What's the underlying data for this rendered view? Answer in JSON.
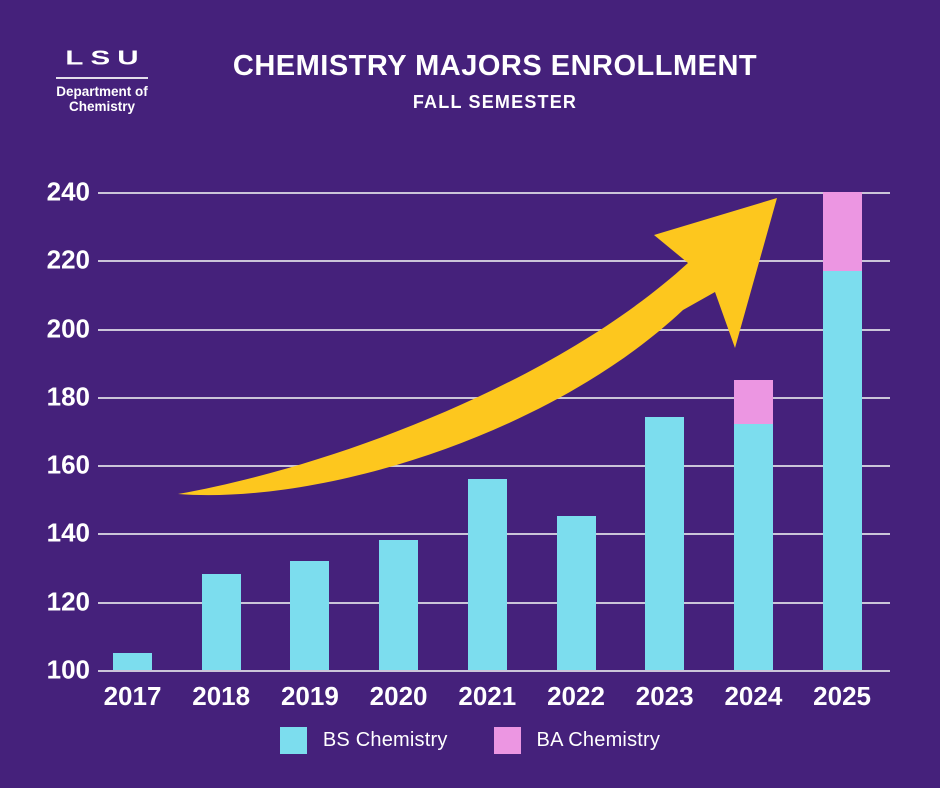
{
  "brand": {
    "logo_text": "LSU",
    "dept_line1": "Department of",
    "dept_line2": "Chemistry"
  },
  "header": {
    "title": "CHEMISTRY MAJORS ENROLLMENT",
    "subtitle": "FALL SEMESTER"
  },
  "chart_data": {
    "type": "bar",
    "stacked": true,
    "title": "CHEMISTRY MAJORS ENROLLMENT",
    "subtitle": "FALL SEMESTER",
    "xlabel": "",
    "ylabel": "",
    "categories": [
      "2017",
      "2018",
      "2019",
      "2020",
      "2021",
      "2022",
      "2023",
      "2024",
      "2025"
    ],
    "series": [
      {
        "name": "BS Chemistry",
        "color": "#7cddee",
        "values": [
          105,
          128,
          132,
          138,
          156,
          145,
          174,
          172,
          217
        ]
      },
      {
        "name": "BA Chemistry",
        "color": "#ec96e2",
        "values": [
          0,
          0,
          0,
          0,
          0,
          0,
          0,
          13,
          23
        ]
      }
    ],
    "totals": [
      105,
      128,
      132,
      138,
      156,
      145,
      174,
      185,
      240
    ],
    "ylim": [
      100,
      240
    ],
    "yticks": [
      240,
      220,
      200,
      180,
      160,
      140,
      120,
      100
    ],
    "grid": true,
    "legend_position": "bottom",
    "annotations": [
      "yellow upward trend arrow from 2017 toward 2025"
    ]
  },
  "legend": {
    "items": [
      {
        "id": "bs",
        "label": "BS Chemistry",
        "color": "#7cddee"
      },
      {
        "id": "ba",
        "label": "BA Chemistry",
        "color": "#ec96e2"
      }
    ]
  },
  "colors": {
    "background": "#45217b",
    "gridline": "#cbc5d9",
    "axis_line": "#cbc5d9",
    "bar_bs": "#7cddee",
    "bar_ba": "#ec96e2",
    "arrow": "#fdc71e",
    "text": "#ffffff"
  }
}
